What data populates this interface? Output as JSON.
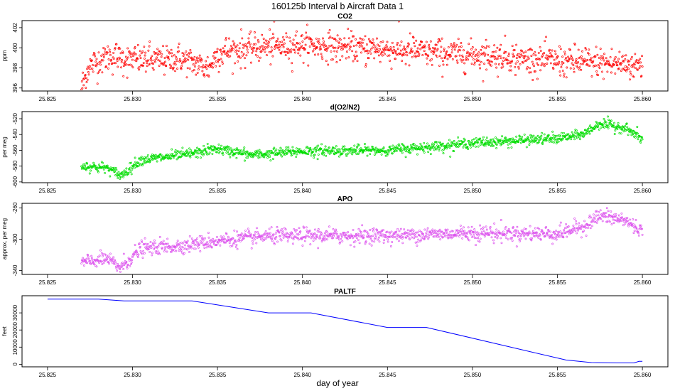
{
  "figure": {
    "title": "160125b   Interval b Aircraft Data 1",
    "xlabel": "day of year"
  },
  "chart_data": [
    {
      "type": "scatter",
      "title": "CO2",
      "ylabel": "ppm",
      "color": "#ff0000",
      "xlim": [
        25.8235,
        25.8615
      ],
      "ylim": [
        395.7,
        402.7
      ],
      "xticks": [
        "25.825",
        "25.830",
        "25.835",
        "25.840",
        "25.845",
        "25.850",
        "25.855",
        "25.860"
      ],
      "yticks": [
        "396",
        "398",
        "400",
        "402"
      ],
      "x_range": [
        25.827,
        25.86
      ],
      "trend_x": [
        25.827,
        25.8274,
        25.8285,
        25.83,
        25.833,
        25.8345,
        25.835,
        25.837,
        25.84,
        25.845,
        25.85,
        25.855,
        25.857,
        25.86
      ],
      "trend_y": [
        396.0,
        398.0,
        399.2,
        398.8,
        398.8,
        398.0,
        399.5,
        400.0,
        400.3,
        399.8,
        399.3,
        398.7,
        398.5,
        398.3
      ],
      "noise": 0.9
    },
    {
      "type": "scatter",
      "title": "d(O2/N2)",
      "ylabel": "per meg",
      "color": "#00dd00",
      "xlim": [
        25.8235,
        25.8615
      ],
      "ylim": [
        -601,
        -511
      ],
      "xticks": [
        "25.825",
        "25.830",
        "25.835",
        "25.840",
        "25.845",
        "25.850",
        "25.855",
        "25.860"
      ],
      "yticks": [
        "-600",
        "-580",
        "-560",
        "-540",
        "-520"
      ],
      "x_range": [
        25.827,
        25.86
      ],
      "trend_x": [
        25.827,
        25.8285,
        25.8293,
        25.8305,
        25.833,
        25.835,
        25.837,
        25.84,
        25.845,
        25.85,
        25.855,
        25.8565,
        25.8575,
        25.859,
        25.86
      ],
      "trend_y": [
        -580,
        -582,
        -592,
        -572,
        -566,
        -558,
        -566,
        -561,
        -560,
        -551,
        -545,
        -540,
        -526,
        -532,
        -546
      ],
      "noise": 4
    },
    {
      "type": "scatter",
      "title": "APO",
      "ylabel": "approx. per meg",
      "color": "#dd55ee",
      "xlim": [
        25.8235,
        25.8615
      ],
      "ylim": [
        -345,
        -254
      ],
      "xticks": [
        "25.825",
        "25.830",
        "25.835",
        "25.840",
        "25.845",
        "25.850",
        "25.855",
        "25.860"
      ],
      "yticks": [
        "-340",
        "-300",
        "-260"
      ],
      "x_range": [
        25.827,
        25.86
      ],
      "trend_x": [
        25.827,
        25.8285,
        25.8293,
        25.8305,
        25.833,
        25.835,
        25.838,
        25.84,
        25.845,
        25.85,
        25.855,
        25.8565,
        25.8575,
        25.859,
        25.86
      ],
      "trend_y": [
        -330,
        -325,
        -336,
        -312,
        -308,
        -302,
        -296,
        -296,
        -295,
        -292,
        -293,
        -284,
        -270,
        -276,
        -290
      ],
      "noise": 6
    },
    {
      "type": "line",
      "title": "PALTF",
      "ylabel": "feet",
      "color": "#0000ff",
      "xlim": [
        25.8235,
        25.8615
      ],
      "ylim": [
        -1500,
        40000
      ],
      "xticks": [
        "25.825",
        "25.830",
        "25.835",
        "25.840",
        "25.845",
        "25.850",
        "25.855",
        "25.860"
      ],
      "yticks": [
        "0",
        "10000",
        "20000",
        "30000"
      ],
      "x": [
        25.825,
        25.828,
        25.8295,
        25.8335,
        25.838,
        25.8405,
        25.845,
        25.8473,
        25.8555,
        25.857,
        25.8585,
        25.8595,
        25.8598,
        25.86
      ],
      "y": [
        38000,
        38000,
        37000,
        37000,
        30000,
        30000,
        21500,
        21500,
        2500,
        1000,
        800,
        800,
        1700,
        1700
      ]
    }
  ]
}
